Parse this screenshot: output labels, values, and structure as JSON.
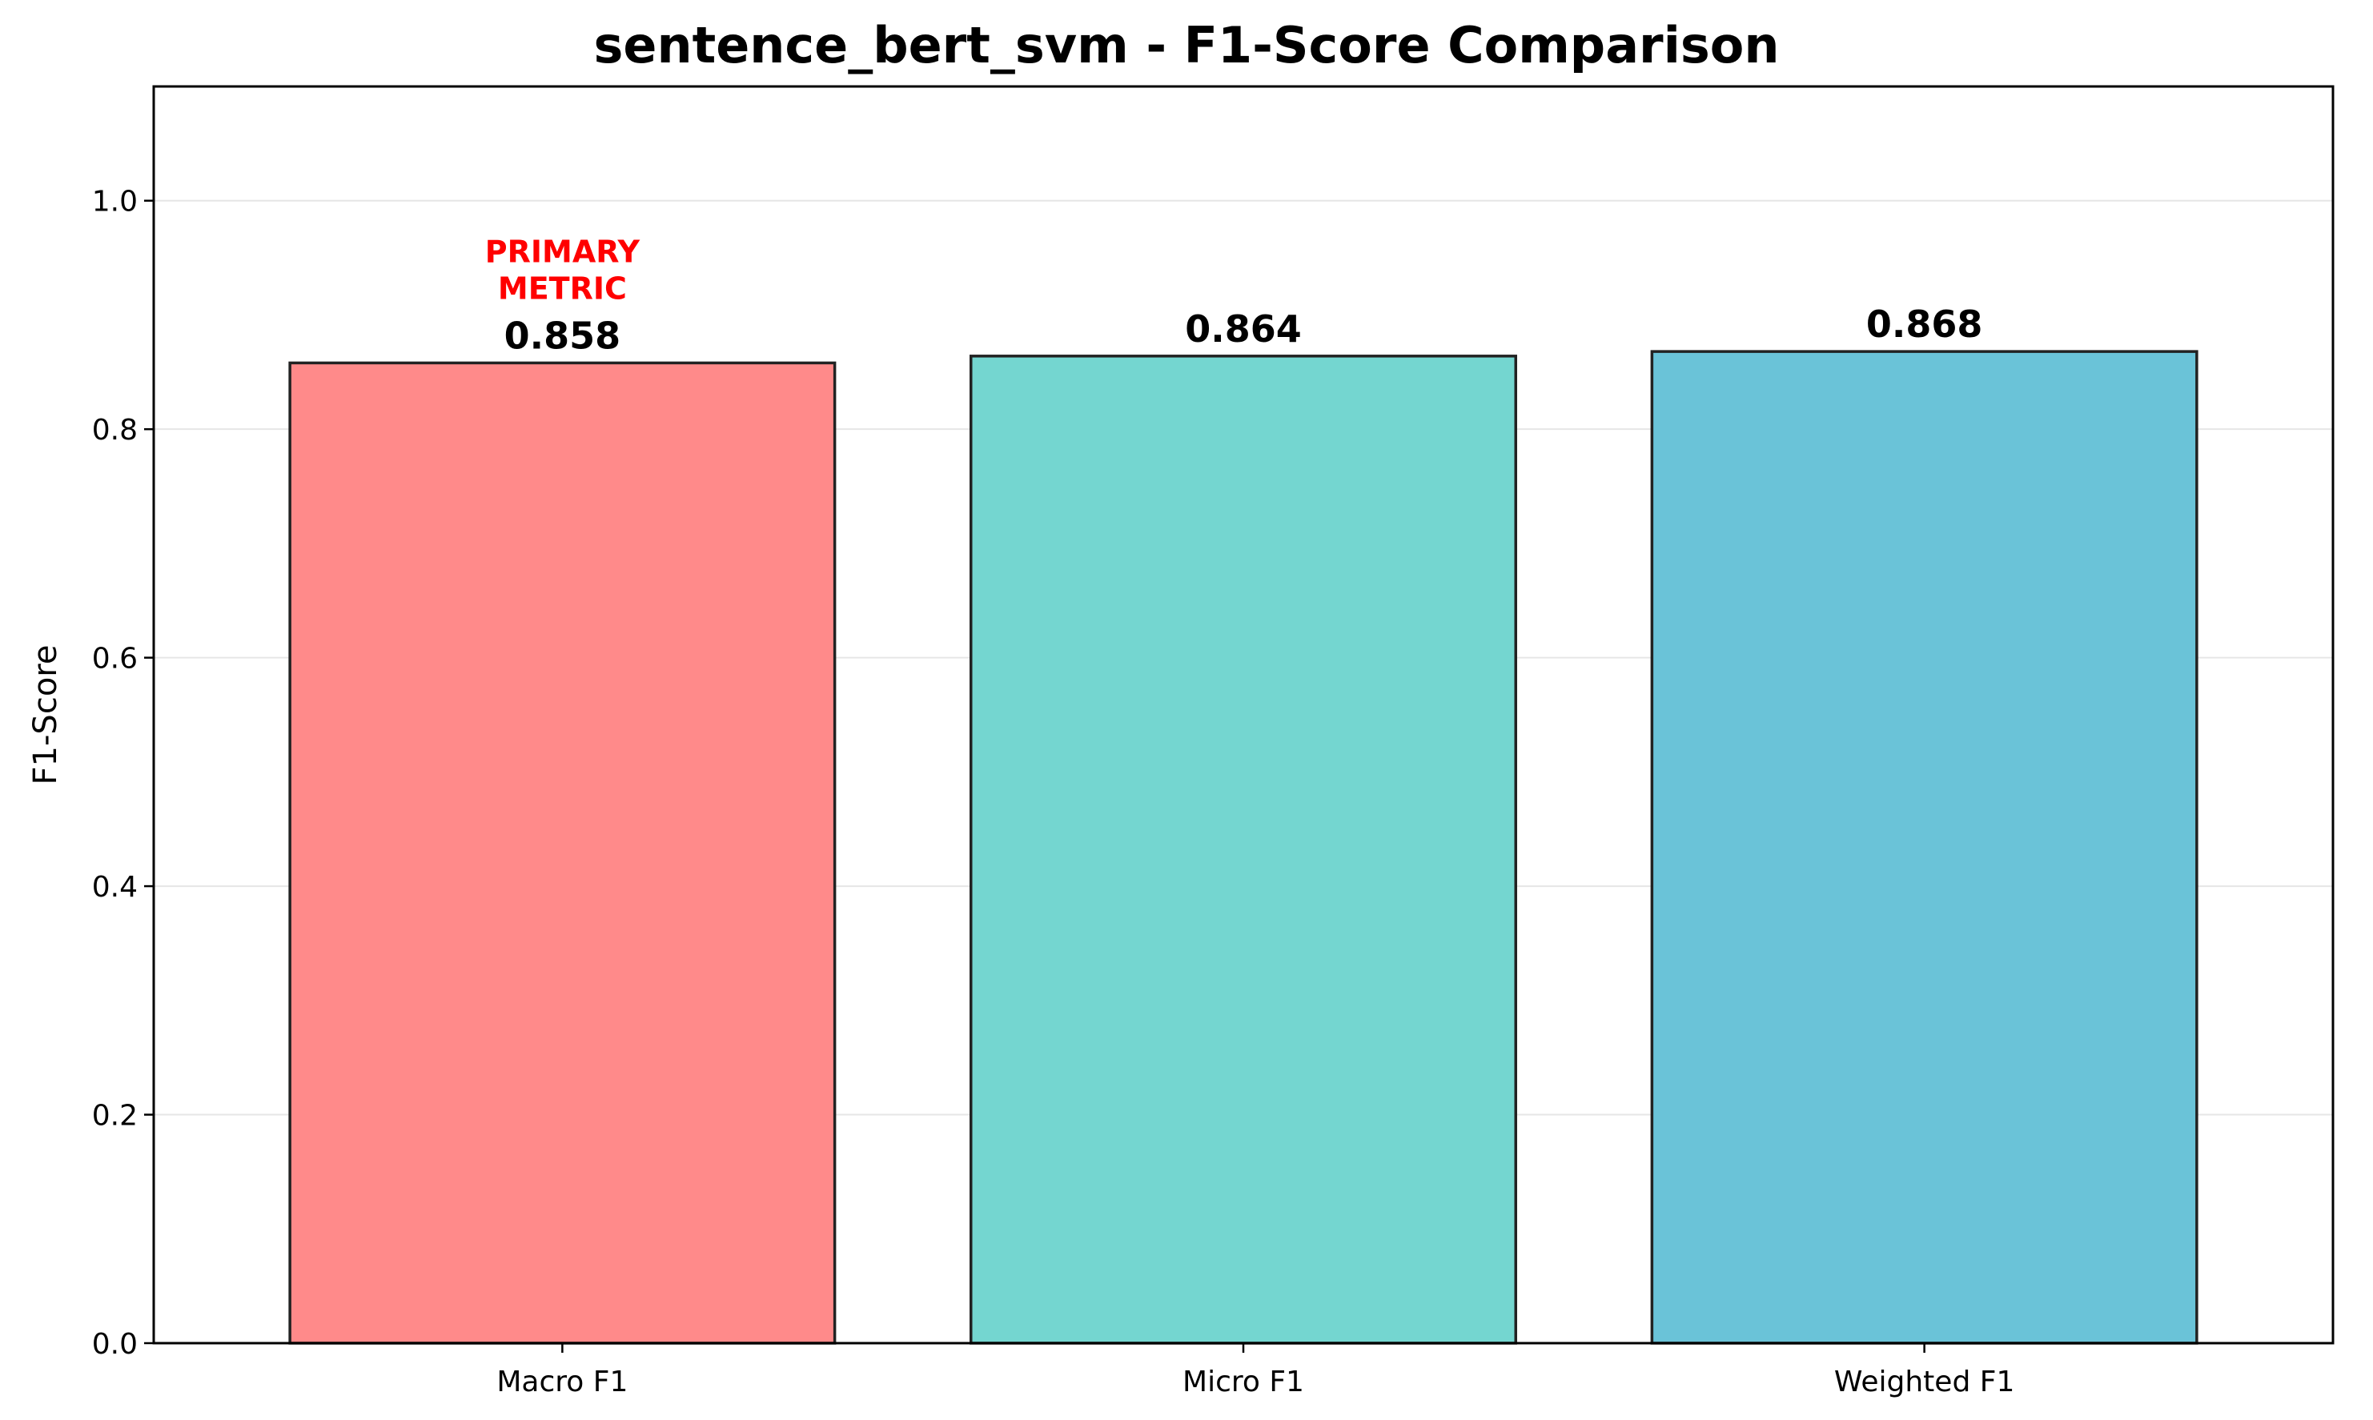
{
  "chart_data": {
    "type": "bar",
    "title": "sentence_bert_svm - F1-Score Comparison",
    "xlabel": "",
    "ylabel": "F1-Score",
    "ylim": [
      0,
      1.1
    ],
    "yticks": [
      "0.0",
      "0.2",
      "0.4",
      "0.6",
      "0.8",
      "1.0"
    ],
    "categories": [
      "Macro F1",
      "Micro F1",
      "Weighted F1"
    ],
    "values": [
      0.858,
      0.864,
      0.868
    ],
    "value_labels": [
      "0.858",
      "0.864",
      "0.868"
    ],
    "colors": [
      "#ff8a8a",
      "#74d6d0",
      "#6ac3d8"
    ],
    "grid": "y-axis, light gray",
    "legend": "none",
    "annotation": {
      "category": "Macro F1",
      "lines": [
        "PRIMARY",
        "METRIC"
      ],
      "color": "#ff0000"
    }
  }
}
